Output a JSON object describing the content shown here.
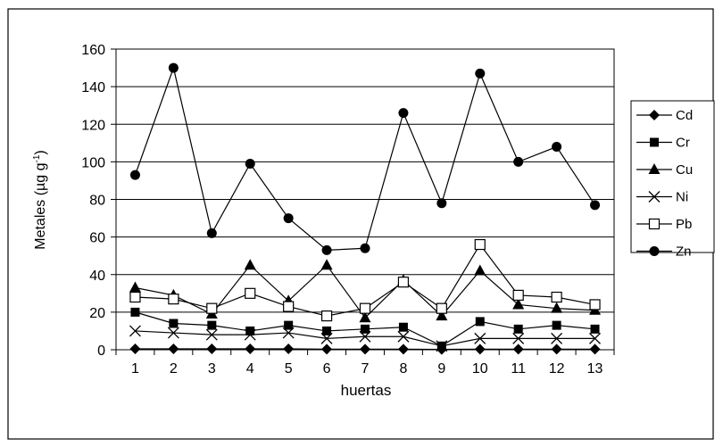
{
  "chart_data": {
    "type": "line",
    "title": "",
    "xlabel": "huertas",
    "ylabel_main": "Metales (µg g",
    "ylabel_sup": "-1",
    "ylabel_end": ")",
    "ylim": [
      0,
      160
    ],
    "yticks": [
      0,
      20,
      40,
      60,
      80,
      100,
      120,
      140,
      160
    ],
    "grid": "horizontal",
    "legend_position": "right",
    "categories": [
      "1",
      "2",
      "3",
      "4",
      "5",
      "6",
      "7",
      "8",
      "9",
      "10",
      "11",
      "12",
      "13"
    ],
    "series": [
      {
        "name": "Cd",
        "marker": "diamond",
        "values": [
          0.5,
          0.5,
          0.5,
          0.5,
          0.5,
          0.3,
          0.3,
          0.3,
          0.2,
          0.3,
          0.3,
          0.3,
          0.3
        ]
      },
      {
        "name": "Cr",
        "marker": "square",
        "values": [
          20,
          14,
          13,
          10,
          13,
          10,
          11,
          12,
          2,
          15,
          11,
          13,
          11
        ]
      },
      {
        "name": "Cu",
        "marker": "triangle",
        "values": [
          33,
          29,
          19,
          45,
          26,
          45,
          17,
          37,
          18,
          42,
          24,
          22,
          21
        ]
      },
      {
        "name": "Ni",
        "marker": "x",
        "values": [
          10,
          9,
          8,
          8,
          9,
          6,
          7,
          7,
          2,
          6,
          6,
          6,
          6
        ]
      },
      {
        "name": "Pb",
        "marker": "open-square",
        "values": [
          28,
          27,
          22,
          30,
          23,
          18,
          22,
          36,
          22,
          56,
          29,
          28,
          24
        ]
      },
      {
        "name": "Zn",
        "marker": "circle",
        "values": [
          93,
          150,
          62,
          99,
          70,
          53,
          54,
          126,
          78,
          147,
          100,
          108,
          77
        ]
      }
    ]
  }
}
